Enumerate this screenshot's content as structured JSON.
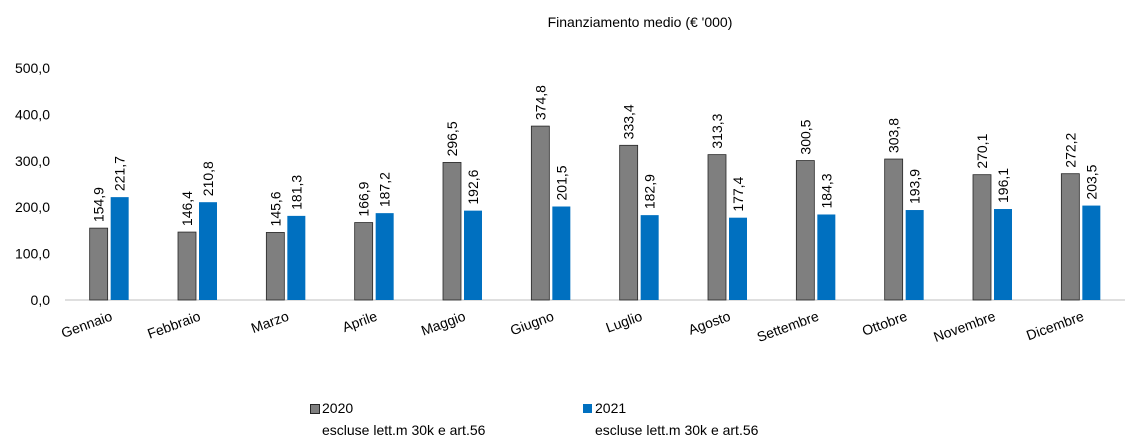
{
  "chart_data": {
    "type": "bar",
    "title": "Finanziamento medio (€ '000)",
    "categories": [
      "Gennaio",
      "Febbraio",
      "Marzo",
      "Aprile",
      "Maggio",
      "Giugno",
      "Luglio",
      "Agosto",
      "Settembre",
      "Ottobre",
      "Novembre",
      "Dicembre"
    ],
    "series": [
      {
        "name": "2020\nescluse lett.m 30k e art.56",
        "color": "#7f7f7f",
        "values": [
          154.9,
          146.4,
          145.6,
          166.9,
          296.5,
          374.8,
          333.4,
          313.3,
          300.5,
          303.8,
          270.1,
          272.2
        ],
        "value_labels": [
          "154,9",
          "146,4",
          "145,6",
          "166,9",
          "296,5",
          "374,8",
          "333,4",
          "313,3",
          "300,5",
          "303,8",
          "270,1",
          "272,2"
        ]
      },
      {
        "name": "2021\nescluse lett.m 30k e art.56",
        "color": "#0070c0",
        "values": [
          221.7,
          210.8,
          181.3,
          187.2,
          192.6,
          201.5,
          182.9,
          177.4,
          184.3,
          193.9,
          196.1,
          203.5
        ],
        "value_labels": [
          "221,7",
          "210,8",
          "181,3",
          "187,2",
          "192,6",
          "201,5",
          "182,9",
          "177,4",
          "184,3",
          "193,9",
          "196,1",
          "203,5"
        ]
      }
    ],
    "ylim": [
      0,
      500
    ],
    "yticks": [
      {
        "value": 0,
        "label": "0,0"
      },
      {
        "value": 100,
        "label": "100,0"
      },
      {
        "value": 200,
        "label": "200,0"
      },
      {
        "value": 300,
        "label": "300,0"
      },
      {
        "value": 400,
        "label": "400,0"
      },
      {
        "value": 500,
        "label": "500,0"
      }
    ],
    "grid": false
  }
}
